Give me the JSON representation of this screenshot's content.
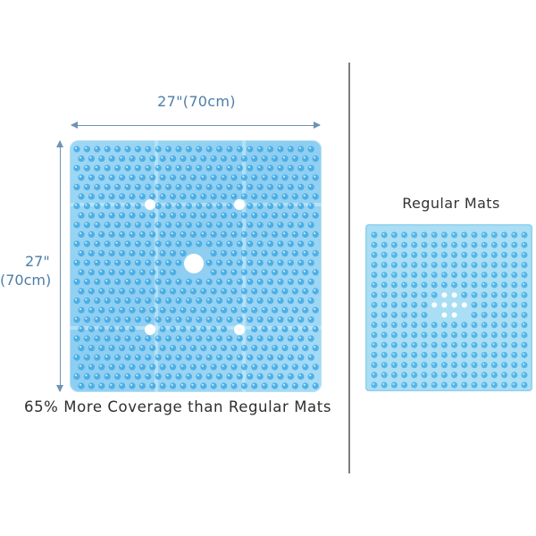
{
  "width_label": "27\"(70cm)",
  "height_label_line1": "27\"",
  "height_label_line2": "(70cm)",
  "caption": "65% More Coverage than Regular Mats",
  "regular_title": "Regular Mats",
  "colors": {
    "dimension": "#4d7ea8",
    "big_mat_bubble": "#3fa8e3",
    "small_mat_bubble": "#4ab1e5",
    "divider": "#7d7d7d"
  }
}
